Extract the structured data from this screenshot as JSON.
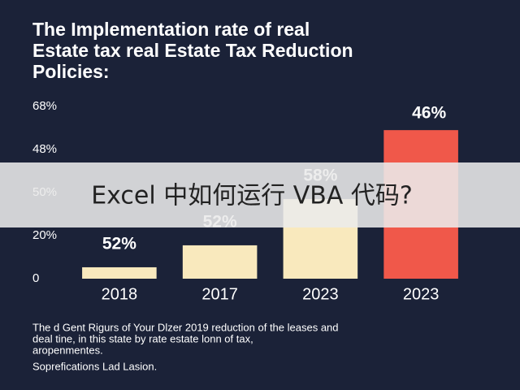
{
  "chart_data": {
    "type": "bar",
    "title": [
      "The Implementation rate of real",
      "Estate tax real Estate Tax Reduction",
      "Policies:"
    ],
    "categories": [
      "2018",
      "2017",
      "2023",
      "2023"
    ],
    "values": [
      5.3,
      15.5,
      37,
      69
    ],
    "colors": [
      "#f9e9bd",
      "#f9e9bd",
      "#f9e9bd",
      "#f0584a"
    ],
    "annotations": [
      "52%",
      "52%",
      "58%",
      "46%"
    ],
    "ylim": [
      0,
      80
    ],
    "yticks": [
      0,
      {
        "value": 20,
        "label": "20%"
      }
    ],
    "axis_texts": [
      "50%",
      "48%",
      "68%"
    ],
    "footer": [
      "The d Gent Rigurs of Your Dlzer 2019 reduction of the leases and",
      "deal tine, in this state by rate estate lonn of tax,",
      "aropenmentes."
    ],
    "source": "Soprefications Lad Lasion.",
    "banner": "Excel 中如何运行 VBA 代码?"
  }
}
